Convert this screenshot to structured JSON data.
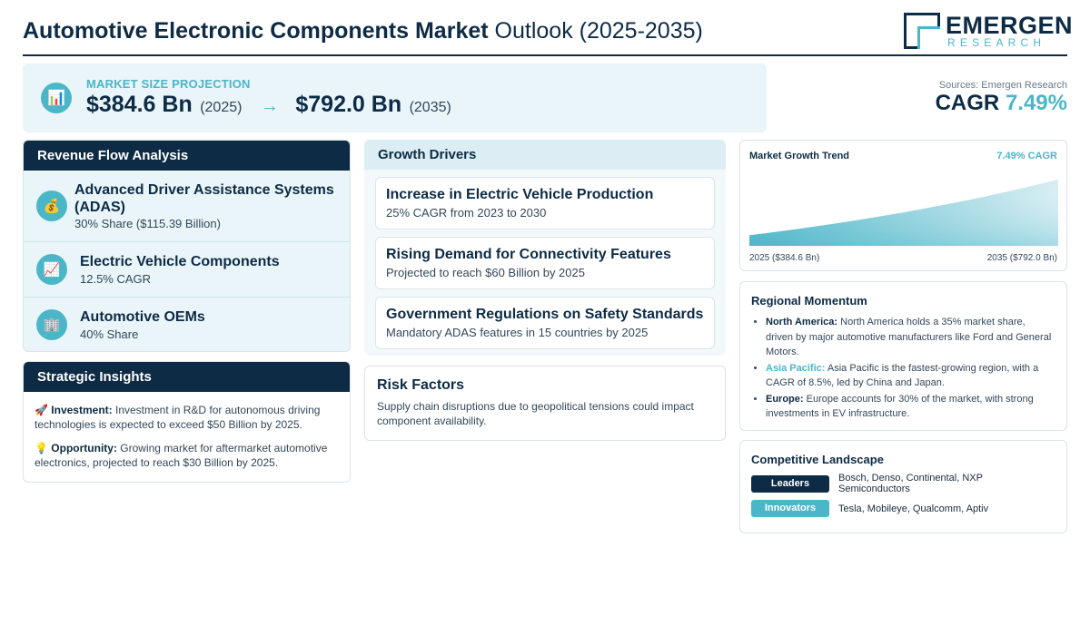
{
  "header": {
    "title_bold": "Automotive Electronic Components Market",
    "title_light": "Outlook (2025-2035)",
    "logo_word": "EMERGEN",
    "logo_sub": "RESEARCH"
  },
  "market_size": {
    "label": "MARKET SIZE PROJECTION",
    "icon": "bar-chart-icon",
    "start_value": "$384.6 Bn",
    "start_year": "(2025)",
    "arrow": "→",
    "end_value": "$792.0 Bn",
    "end_year": "(2035)"
  },
  "cagr": {
    "source": "Sources: Emergen Research",
    "label": "CAGR",
    "value": "7.49%"
  },
  "revenue_flow": {
    "title": "Revenue Flow Analysis",
    "items": [
      {
        "icon": "💰",
        "name": "Advanced Driver Assistance Systems (ADAS)",
        "sub": "30% Share ($115.39 Billion)"
      },
      {
        "icon": "📈",
        "name": "Electric Vehicle Components",
        "sub": "12.5% CAGR"
      },
      {
        "icon": "🏢",
        "name": "Automotive OEMs",
        "sub": "40% Share"
      }
    ]
  },
  "insights": {
    "title": "Strategic Insights",
    "items": [
      {
        "icon": "🚀",
        "label": "Investment:",
        "text": "Investment in R&D for autonomous driving technologies is expected to exceed $50 Billion by 2025."
      },
      {
        "icon": "💡",
        "label": "Opportunity:",
        "text": "Growing market for aftermarket automotive electronics, projected to reach $30 Billion by 2025."
      }
    ]
  },
  "drivers": {
    "title": "Growth Drivers",
    "items": [
      {
        "title": "Increase in Electric Vehicle Production",
        "sub": "25% CAGR from 2023 to 2030"
      },
      {
        "title": "Rising Demand for Connectivity Features",
        "sub": "Projected to reach $60 Billion by 2025"
      },
      {
        "title": "Government Regulations on Safety Standards",
        "sub": "Mandatory ADAS features in 15 countries by 2025"
      }
    ]
  },
  "risk": {
    "title": "Risk Factors",
    "text": "Supply chain disruptions due to geopolitical tensions could impact component availability."
  },
  "trend": {
    "title": "Market Growth Trend",
    "cagr": "7.49% CAGR",
    "left_label": "2025 ($384.6 Bn)",
    "right_label": "2035 ($792.0 Bn)"
  },
  "chart_data": {
    "type": "area",
    "title": "Market Growth Trend",
    "x": [
      2025,
      2035
    ],
    "series": [
      {
        "values": [
          384.6,
          792.0
        ]
      }
    ],
    "colors": [
      "#4cb6c9"
    ]
  },
  "region": {
    "title": "Regional Momentum",
    "items": [
      {
        "label": "North America:",
        "text": "North America holds a 35% market share, driven by major automotive manufacturers like Ford and General Motors.",
        "accent": false
      },
      {
        "label": "Asia Pacific:",
        "text": "Asia Pacific is the fastest-growing region, with a CAGR of 8.5%, led by China and Japan.",
        "accent": true
      },
      {
        "label": "Europe:",
        "text": "Europe accounts for 30% of the market, with strong investments in EV infrastructure.",
        "accent": false
      }
    ]
  },
  "competitive": {
    "title": "Competitive Landscape",
    "leaders_label": "Leaders",
    "leaders": "Bosch, Denso, Continental, NXP Semiconductors",
    "innovators_label": "Innovators",
    "innovators": "Tesla, Mobileye, Qualcomm, Aptiv"
  },
  "colors": {
    "navy": "#0d2b45",
    "teal": "#4cb6c9",
    "light_bg": "#e9f5f8"
  }
}
